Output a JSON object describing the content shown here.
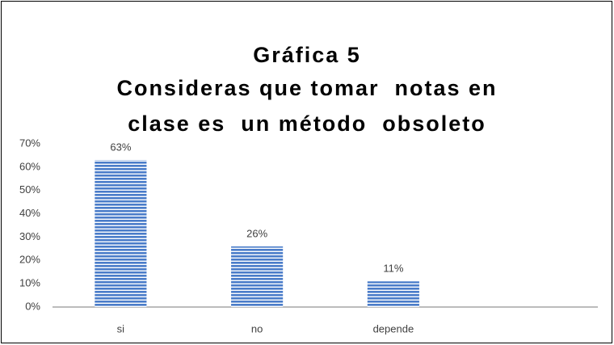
{
  "chart_data": {
    "type": "bar",
    "title": [
      "Gráfica 5",
      "Consideras que tomar  notas en",
      "clase es  un método  obsoleto"
    ],
    "categories": [
      "si",
      "no",
      "depende",
      null
    ],
    "values": [
      63,
      26,
      11,
      null
    ],
    "value_labels": [
      "63%",
      "26%",
      "11%",
      null
    ],
    "color": "#4a7cc9",
    "ylim": [
      0,
      70
    ],
    "yticks": [
      {
        "value": 0,
        "label": "0%"
      },
      {
        "value": 10,
        "label": "10%"
      },
      {
        "value": 20,
        "label": "20%"
      },
      {
        "value": 30,
        "label": "30%"
      },
      {
        "value": 40,
        "label": "40%"
      },
      {
        "value": 50,
        "label": "50%"
      },
      {
        "value": 60,
        "label": "60%"
      },
      {
        "value": 70,
        "label": "70%"
      }
    ],
    "grid": false
  }
}
